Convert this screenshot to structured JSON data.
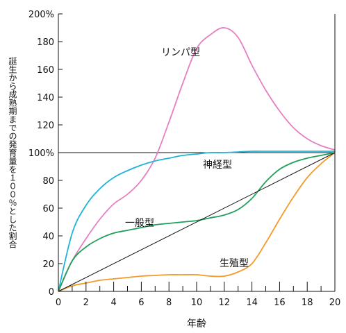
{
  "chart_data": {
    "type": "line",
    "title": "",
    "xlabel": "年齢",
    "ylabel": "誕生から成熟期までの発育量を１００％とした割合",
    "xlim": [
      0,
      20
    ],
    "ylim": [
      0,
      200
    ],
    "xticks": [
      "0",
      "2",
      "4",
      "6",
      "8",
      "10",
      "12",
      "14",
      "16",
      "18",
      "20"
    ],
    "yticks": [
      "0",
      "20",
      "40",
      "60",
      "80",
      "100%",
      "120",
      "140",
      "160",
      "180",
      "200%"
    ],
    "grid": false,
    "legend": "none",
    "reference_line": {
      "y": 100
    },
    "series": [
      {
        "name": "リンパ型",
        "color": "#e57fc0",
        "points": [
          [
            0,
            0
          ],
          [
            1,
            22
          ],
          [
            2,
            38
          ],
          [
            3,
            52
          ],
          [
            4,
            63
          ],
          [
            5,
            70
          ],
          [
            6,
            80
          ],
          [
            7,
            96
          ],
          [
            8,
            122
          ],
          [
            9,
            150
          ],
          [
            10,
            175
          ],
          [
            11,
            185
          ],
          [
            12,
            190
          ],
          [
            13,
            183
          ],
          [
            14,
            163
          ],
          [
            15,
            145
          ],
          [
            16,
            130
          ],
          [
            17,
            118
          ],
          [
            18,
            110
          ],
          [
            19,
            105
          ],
          [
            20,
            102
          ]
        ]
      },
      {
        "name": "神経型",
        "color": "#1fb3d6",
        "points": [
          [
            0,
            0
          ],
          [
            1,
            42
          ],
          [
            2,
            62
          ],
          [
            3,
            74
          ],
          [
            4,
            82
          ],
          [
            5,
            87
          ],
          [
            6,
            91
          ],
          [
            7,
            94
          ],
          [
            8,
            96
          ],
          [
            9,
            98
          ],
          [
            10,
            99
          ],
          [
            11,
            100
          ],
          [
            12,
            100
          ],
          [
            13,
            100.5
          ],
          [
            14,
            101
          ],
          [
            15,
            101
          ],
          [
            16,
            101
          ],
          [
            17,
            101
          ],
          [
            18,
            101
          ],
          [
            19,
            101
          ],
          [
            20,
            101
          ]
        ]
      },
      {
        "name": "一般型",
        "color": "#1fa05a",
        "points": [
          [
            0,
            0
          ],
          [
            1,
            22
          ],
          [
            2,
            32
          ],
          [
            3,
            38
          ],
          [
            4,
            42
          ],
          [
            5,
            44
          ],
          [
            6,
            46
          ],
          [
            7,
            48
          ],
          [
            8,
            49
          ],
          [
            9,
            50
          ],
          [
            10,
            51
          ],
          [
            11,
            53
          ],
          [
            12,
            55
          ],
          [
            13,
            59
          ],
          [
            14,
            67
          ],
          [
            15,
            79
          ],
          [
            16,
            88
          ],
          [
            17,
            93
          ],
          [
            18,
            96
          ],
          [
            19,
            98
          ],
          [
            20,
            100
          ]
        ]
      },
      {
        "name": "生殖型",
        "color": "#f39a2a",
        "points": [
          [
            0,
            0
          ],
          [
            1,
            4
          ],
          [
            2,
            6
          ],
          [
            3,
            8
          ],
          [
            4,
            9
          ],
          [
            5,
            10
          ],
          [
            6,
            11
          ],
          [
            7,
            11.5
          ],
          [
            8,
            12
          ],
          [
            9,
            12
          ],
          [
            10,
            12
          ],
          [
            11,
            11
          ],
          [
            12,
            11
          ],
          [
            13,
            14
          ],
          [
            14,
            20
          ],
          [
            15,
            35
          ],
          [
            16,
            52
          ],
          [
            17,
            68
          ],
          [
            18,
            82
          ],
          [
            19,
            92
          ],
          [
            20,
            100
          ]
        ]
      },
      {
        "name": "",
        "color": "#111111",
        "points": [
          [
            0,
            0
          ],
          [
            20,
            100
          ]
        ]
      }
    ]
  }
}
